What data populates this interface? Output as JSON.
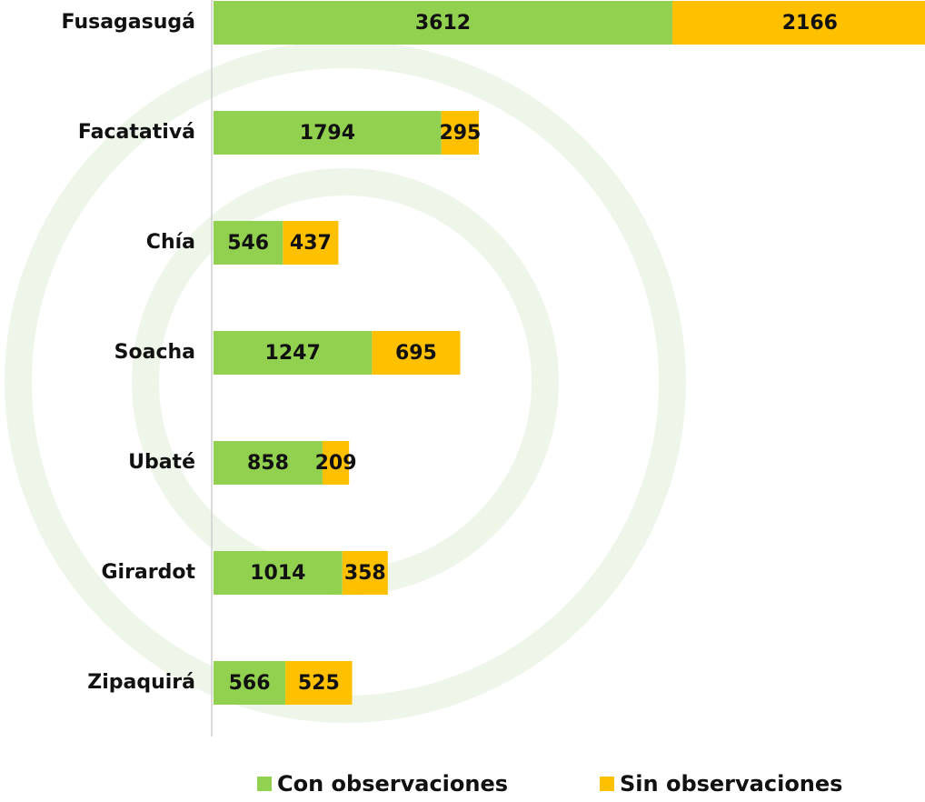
{
  "chart_data": {
    "type": "stacked_barh",
    "categories": [
      "Fusagasugá",
      "Facatativá",
      "Chía",
      "Soacha",
      "Ubaté",
      "Girardot",
      "Zipaquirá"
    ],
    "series": [
      {
        "name": "Con observaciones",
        "color": "#92d050",
        "values": [
          3612,
          1794,
          546,
          1247,
          858,
          1014,
          566
        ]
      },
      {
        "name": "Sin observaciones",
        "color": "#ffc000",
        "values": [
          2166,
          295,
          437,
          695,
          209,
          358,
          525
        ]
      }
    ],
    "legend": "bottom"
  }
}
